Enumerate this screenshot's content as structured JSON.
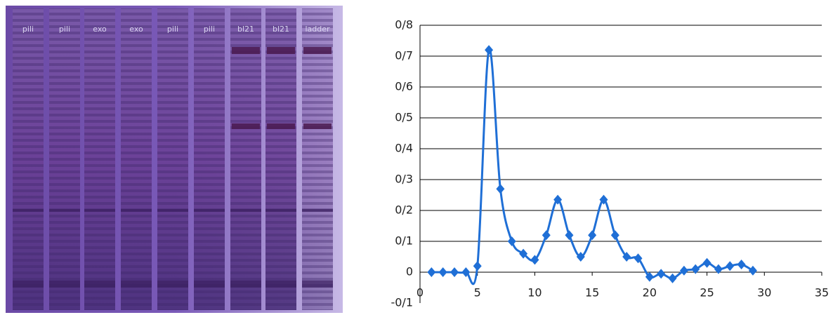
{
  "gel": {
    "lane_labels": [
      "pili",
      "pili",
      "exo",
      "exo",
      "pili",
      "pili",
      "bl21",
      "bl21",
      "ladder"
    ]
  },
  "chart_data": {
    "type": "line",
    "x": [
      1,
      2,
      3,
      4,
      5,
      6,
      7,
      8,
      9,
      10,
      11,
      12,
      13,
      14,
      15,
      16,
      17,
      18,
      19,
      20,
      21,
      22,
      23,
      24,
      25,
      26,
      27,
      28,
      29
    ],
    "values": [
      0,
      0,
      0,
      0,
      0.02,
      0.72,
      0.27,
      0.1,
      0.06,
      0.04,
      0.12,
      0.235,
      0.12,
      0.05,
      0.12,
      0.235,
      0.12,
      0.05,
      0.045,
      -0.015,
      -0.005,
      -0.02,
      0.005,
      0.01,
      0.03,
      0.01,
      0.02,
      0.025,
      0.005
    ],
    "color": "#1f6fd6",
    "xlim": [
      0,
      35
    ],
    "xticks": [
      0,
      5,
      10,
      15,
      20,
      25,
      30,
      35
    ],
    "ylim": [
      -0.1,
      0.8
    ],
    "yticks": [
      {
        "value": -0.1,
        "label": "-0/1"
      },
      0,
      {
        "value": 0.1,
        "label": "0/1"
      },
      {
        "value": 0.2,
        "label": "0/2"
      },
      {
        "value": 0.3,
        "label": "0/3"
      },
      {
        "value": 0.4,
        "label": "0/4"
      },
      {
        "value": 0.5,
        "label": "0/5"
      },
      {
        "value": 0.6,
        "label": "0/6"
      },
      {
        "value": 0.7,
        "label": "0/7"
      },
      {
        "value": 0.8,
        "label": "0/8"
      }
    ],
    "grid": true
  }
}
